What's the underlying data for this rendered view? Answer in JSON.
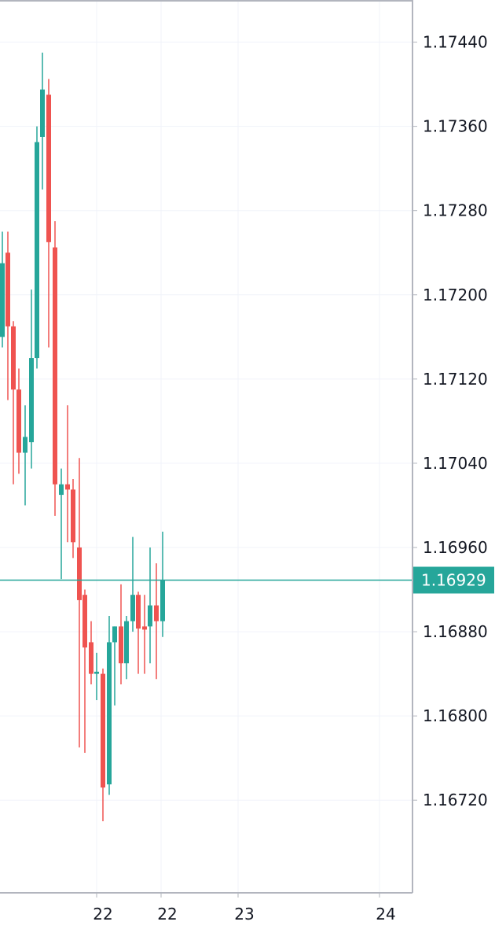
{
  "chart_data": {
    "type": "candlestick",
    "ylim": [
      1.16632,
      1.1748
    ],
    "y_ticks": [
      "1.17440",
      "1.17360",
      "1.17280",
      "1.17200",
      "1.17120",
      "1.17040",
      "1.16960",
      "1.16880",
      "1.16800",
      "1.16720"
    ],
    "x_ticks": [
      {
        "label": "22",
        "pos": 123
      },
      {
        "label": "22",
        "pos": 205
      },
      {
        "label": "23",
        "pos": 303
      },
      {
        "label": "24",
        "pos": 483
      }
    ],
    "last_price": {
      "label": "1.16929",
      "value": 1.16929
    },
    "colors": {
      "up": "#26a69a",
      "down": "#ef5350",
      "grid": "#f0f3fa",
      "axis": "#b2b5be",
      "last_line": "#26a69a"
    },
    "candles": [
      {
        "x": 0,
        "o": 1.1716,
        "h": 1.1726,
        "l": 1.1715,
        "c": 1.1723
      },
      {
        "x": 7,
        "o": 1.1724,
        "h": 1.1726,
        "l": 1.171,
        "c": 1.1717
      },
      {
        "x": 14,
        "o": 1.1717,
        "h": 1.17175,
        "l": 1.1702,
        "c": 1.1711
      },
      {
        "x": 21,
        "o": 1.1711,
        "h": 1.1713,
        "l": 1.1703,
        "c": 1.1705
      },
      {
        "x": 29,
        "o": 1.1705,
        "h": 1.17095,
        "l": 1.17,
        "c": 1.17065
      },
      {
        "x": 37,
        "o": 1.1706,
        "h": 1.17205,
        "l": 1.17035,
        "c": 1.1714
      },
      {
        "x": 44,
        "o": 1.1714,
        "h": 1.1736,
        "l": 1.1713,
        "c": 1.17345
      },
      {
        "x": 51,
        "o": 1.1735,
        "h": 1.1743,
        "l": 1.173,
        "c": 1.17395
      },
      {
        "x": 59,
        "o": 1.1739,
        "h": 1.17405,
        "l": 1.1715,
        "c": 1.1725
      },
      {
        "x": 67,
        "o": 1.17245,
        "h": 1.1727,
        "l": 1.1699,
        "c": 1.1702
      },
      {
        "x": 75,
        "o": 1.1701,
        "h": 1.17035,
        "l": 1.1693,
        "c": 1.1702
      },
      {
        "x": 83,
        "o": 1.1702,
        "h": 1.17095,
        "l": 1.16965,
        "c": 1.17015
      },
      {
        "x": 90,
        "o": 1.17015,
        "h": 1.17025,
        "l": 1.1695,
        "c": 1.16965
      },
      {
        "x": 98,
        "o": 1.1696,
        "h": 1.17045,
        "l": 1.1677,
        "c": 1.1691
      },
      {
        "x": 105,
        "o": 1.16915,
        "h": 1.1692,
        "l": 1.16765,
        "c": 1.16865
      },
      {
        "x": 113,
        "o": 1.1687,
        "h": 1.1689,
        "l": 1.1683,
        "c": 1.1684
      },
      {
        "x": 120,
        "o": 1.1684,
        "h": 1.1686,
        "l": 1.16815,
        "c": 1.16842
      },
      {
        "x": 128,
        "o": 1.1684,
        "h": 1.16845,
        "l": 1.167,
        "c": 1.16732
      },
      {
        "x": 136,
        "o": 1.16735,
        "h": 1.16895,
        "l": 1.16725,
        "c": 1.1687
      },
      {
        "x": 143,
        "o": 1.1687,
        "h": 1.16885,
        "l": 1.1681,
        "c": 1.16885
      },
      {
        "x": 151,
        "o": 1.16885,
        "h": 1.16925,
        "l": 1.1683,
        "c": 1.1685
      },
      {
        "x": 158,
        "o": 1.1685,
        "h": 1.16895,
        "l": 1.16835,
        "c": 1.1689
      },
      {
        "x": 166,
        "o": 1.1689,
        "h": 1.1697,
        "l": 1.1688,
        "c": 1.16915
      },
      {
        "x": 173,
        "o": 1.16915,
        "h": 1.16918,
        "l": 1.1684,
        "c": 1.16883
      },
      {
        "x": 181,
        "o": 1.16885,
        "h": 1.16915,
        "l": 1.1684,
        "c": 1.16882
      },
      {
        "x": 188,
        "o": 1.16885,
        "h": 1.1696,
        "l": 1.1685,
        "c": 1.16905
      },
      {
        "x": 196,
        "o": 1.16905,
        "h": 1.16945,
        "l": 1.16835,
        "c": 1.1689
      },
      {
        "x": 204,
        "o": 1.1689,
        "h": 1.16975,
        "l": 1.16875,
        "c": 1.16929
      }
    ]
  }
}
